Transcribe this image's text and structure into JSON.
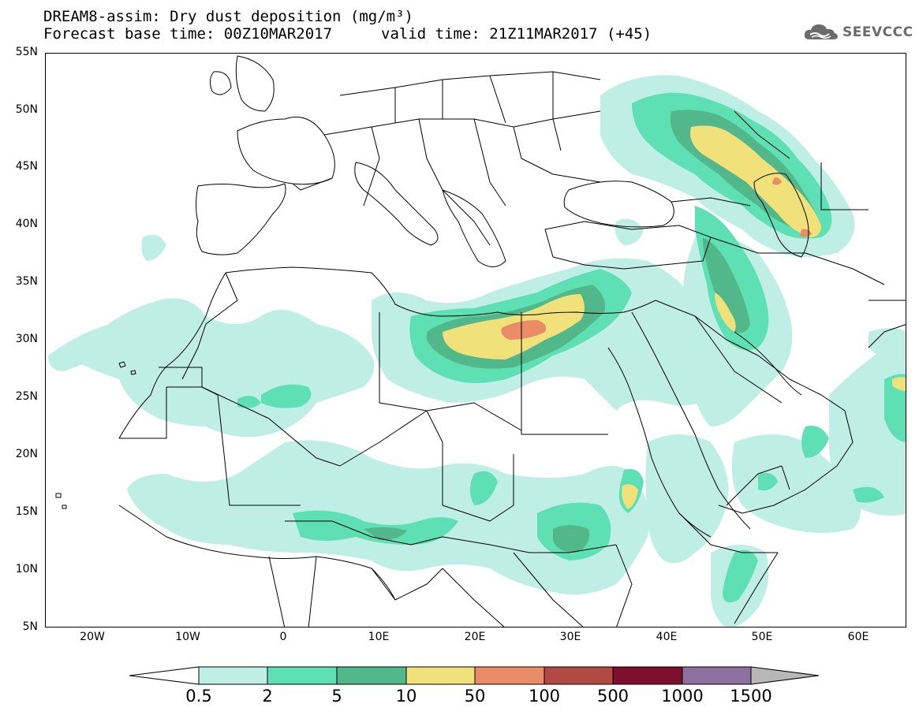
{
  "header": {
    "title_line1": "DREAM8-assim: Dry dust deposition (mg/m³)",
    "forecast_base": "Forecast base time: 00Z10MAR2017",
    "valid_time": "valid time: 21Z11MAR2017 (+45)"
  },
  "logo": {
    "text": "SEEVCCC",
    "icon": "cloud-logo-icon"
  },
  "map": {
    "projection": "lat-lon",
    "lon_range": [
      -25,
      65
    ],
    "lat_range": [
      5,
      55
    ],
    "lat_labels": [
      "55N",
      "50N",
      "45N",
      "40N",
      "35N",
      "30N",
      "25N",
      "20N",
      "15N",
      "10N",
      "5N"
    ],
    "lon_labels": [
      "20W",
      "10W",
      "0",
      "10E",
      "20E",
      "30E",
      "40E",
      "50E",
      "60E"
    ],
    "colors": {
      "c1": "#bfefe4",
      "c2": "#5fe0b4",
      "c3": "#52b88c",
      "c4": "#f1e17a",
      "c5": "#ea8c67",
      "c6": "#b04a42",
      "c7": "#7e0e2d",
      "c8": "#8d6fa0",
      "c9": "#b8b8b8"
    }
  },
  "colorbar": {
    "labels": [
      "0.5",
      "2",
      "5",
      "10",
      "50",
      "100",
      "500",
      "1000",
      "1500"
    ],
    "colors": [
      "#bfefe4",
      "#5fe0b4",
      "#52b88c",
      "#f1e17a",
      "#ea8c67",
      "#b04a42",
      "#7e0e2d",
      "#8d6fa0",
      "#b8b8b8"
    ],
    "low_end_color": "#ffffff"
  }
}
